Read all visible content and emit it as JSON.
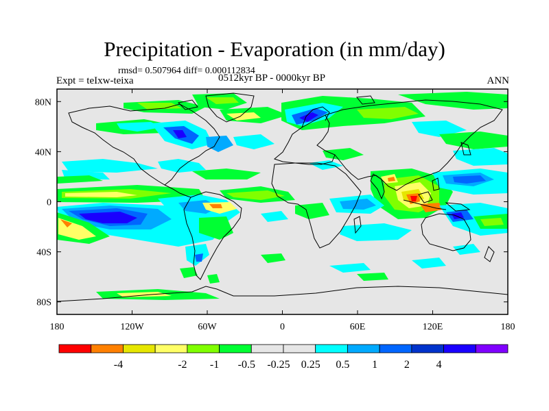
{
  "title": "Precipitation - Evaporation (in mm/day)",
  "stats": "rmsd= 0.507964 diff= 0.000112834",
  "expt": "Expt = teIxw-teixa",
  "period": "0512kyr BP - 0000kyr BP",
  "season": "ANN",
  "map": {
    "lon_range": [
      -180,
      180
    ],
    "lat_range": [
      -90,
      90
    ],
    "background_color": "#e6e6e6",
    "lat_ticks": [
      {
        "value": 80,
        "label": "80N"
      },
      {
        "value": 40,
        "label": "40N"
      },
      {
        "value": 0,
        "label": "0"
      },
      {
        "value": -40,
        "label": "40S"
      },
      {
        "value": -80,
        "label": "80S"
      }
    ],
    "lon_ticks": [
      {
        "value": -180,
        "label": "180"
      },
      {
        "value": -120,
        "label": "120W"
      },
      {
        "value": -60,
        "label": "60W"
      },
      {
        "value": 0,
        "label": "0"
      },
      {
        "value": 60,
        "label": "60E"
      },
      {
        "value": 120,
        "label": "120E"
      },
      {
        "value": 180,
        "label": "180"
      }
    ]
  },
  "colorbar": {
    "colors": [
      "#ff0000",
      "#ff8000",
      "#e6e600",
      "#ffff66",
      "#80ff00",
      "#00ff33",
      "#e6e6e6",
      "#e6e6e6",
      "#00ffff",
      "#00aaff",
      "#0066ff",
      "#0033cc",
      "#1a00ff",
      "#8000ff"
    ],
    "labels": [
      "-4",
      "-2",
      "-1",
      "-0.5",
      "-0.25",
      "0.25",
      "0.5",
      "1",
      "2",
      "4"
    ]
  }
}
